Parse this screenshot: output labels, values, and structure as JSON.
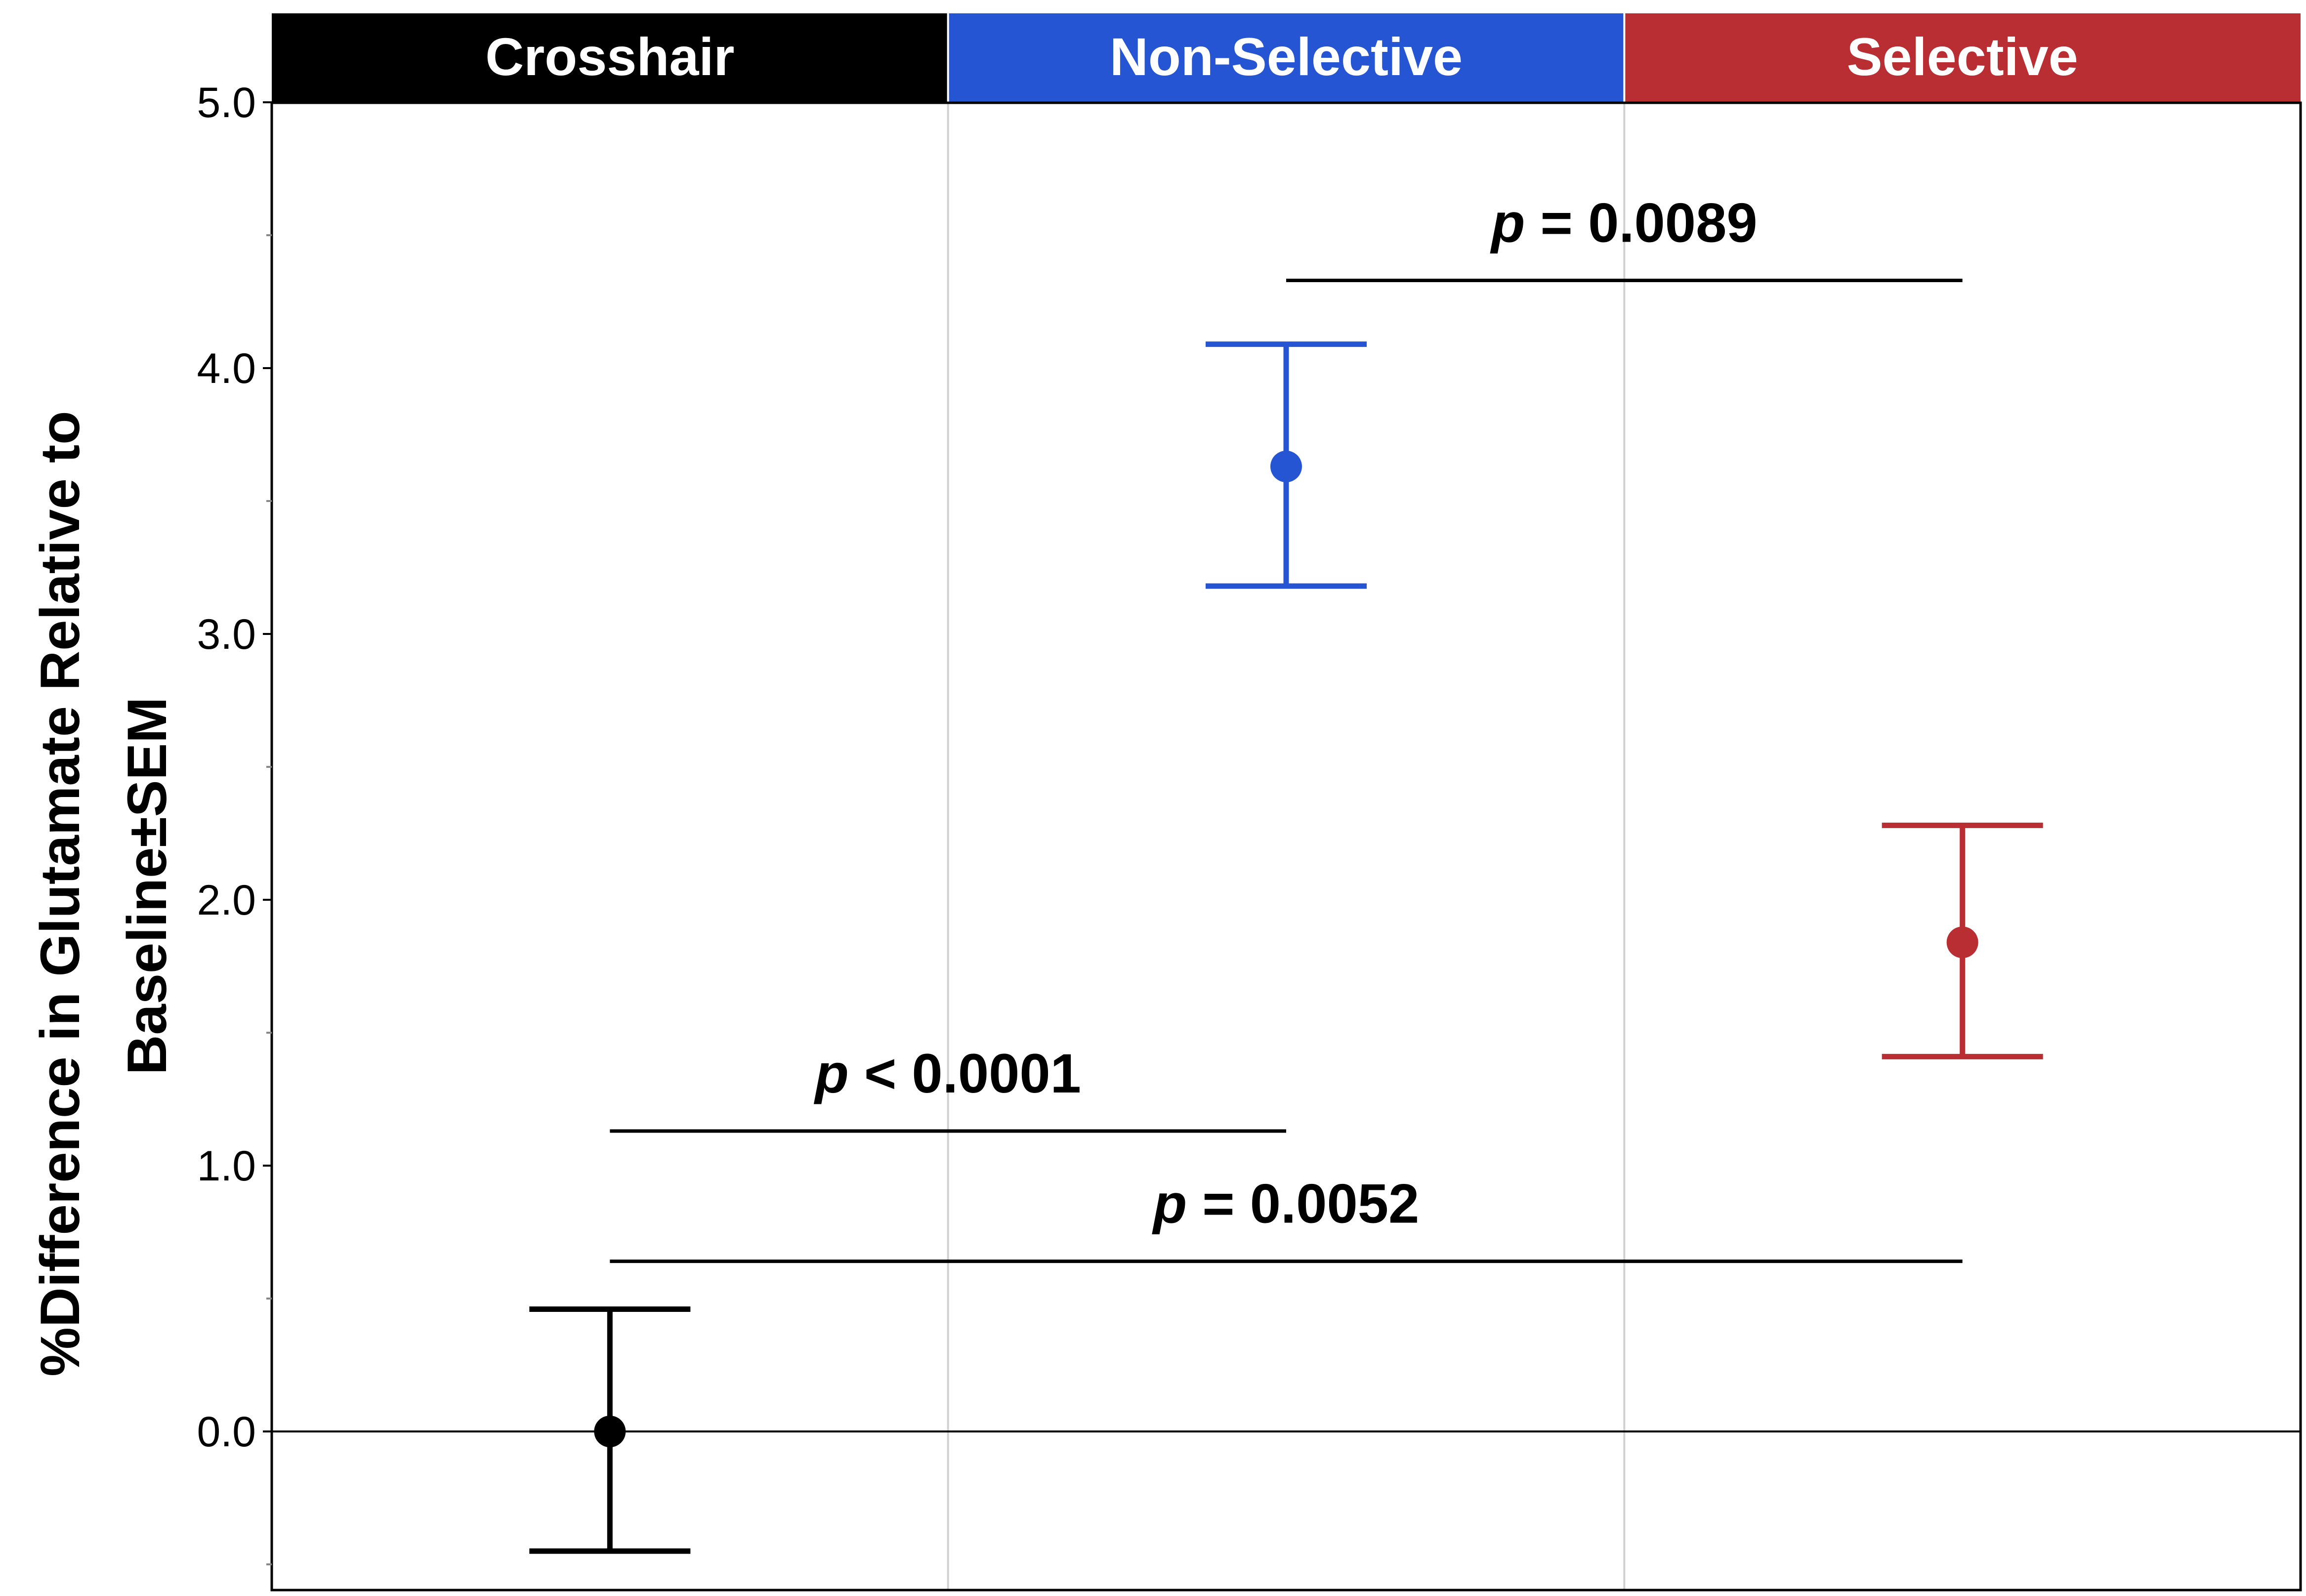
{
  "chart_data": {
    "type": "scatter",
    "title": "",
    "xlabel": "",
    "ylabel_lines": [
      "%Difference in Glutamate Relative to",
      "Baseline±SEM"
    ],
    "ylim": [
      -0.6,
      5.0
    ],
    "yticks": [
      0.0,
      1.0,
      2.0,
      3.0,
      4.0,
      5.0
    ],
    "ytick_labels": [
      "0.0",
      "1.0",
      "2.0",
      "3.0",
      "4.0",
      "5.0"
    ],
    "grid": "vertical panel dividers",
    "reference_line_y": 0.0,
    "categories": [
      "Crosshair",
      "Non-Selective",
      "Selective"
    ],
    "series": [
      {
        "category": "Crosshair",
        "color": "#000000",
        "mean": 0.0,
        "lower": -0.45,
        "upper": 0.46
      },
      {
        "category": "Non-Selective",
        "color": "#2655d4",
        "mean": 3.63,
        "lower": 3.18,
        "upper": 4.09
      },
      {
        "category": "Selective",
        "color": "#b82e33",
        "mean": 1.84,
        "lower": 1.41,
        "upper": 2.28
      }
    ],
    "header_colors": [
      "#000000",
      "#2655d4",
      "#b82e33"
    ],
    "comparisons": [
      {
        "from": 0,
        "to": 1,
        "y": 1.13,
        "p_symbol": "p",
        "p_rest": " < 0.0001"
      },
      {
        "from": 0,
        "to": 2,
        "y": 0.64,
        "p_symbol": "p",
        "p_rest": " = 0.0052"
      },
      {
        "from": 1,
        "to": 2,
        "y": 4.33,
        "p_symbol": "p",
        "p_rest": " = 0.0089"
      }
    ]
  }
}
